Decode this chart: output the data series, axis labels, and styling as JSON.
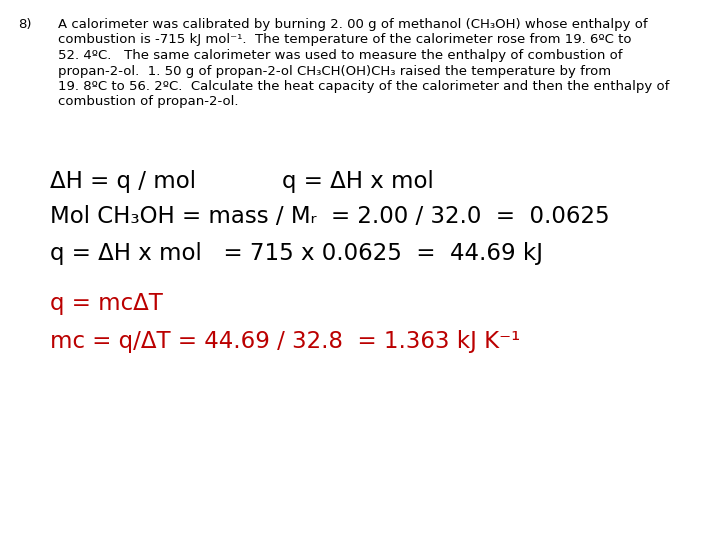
{
  "background_color": "#ffffff",
  "problem_number": "8)",
  "problem_text_lines": [
    "A calorimeter was calibrated by burning 2. 00 g of methanol (CH₃OH) whose enthalpy of",
    "combustion is -715 kJ mol⁻¹.  The temperature of the calorimeter rose from 19. 6ºC to",
    "52. 4ºC.   The same calorimeter was used to measure the enthalpy of combustion of",
    "propan-2-ol.  1. 50 g of propan-2-ol CH₃CH(OH)CH₃ raised the temperature by from",
    "19. 8ºC to 56. 2ºC.  Calculate the heat capacity of the calorimeter and then the enthalpy of",
    "combustion of propan-2-ol."
  ],
  "line1_left": "ΔH = q / mol",
  "line1_right": "q = ΔH x mol",
  "line2": "Mol CH₃OH = mass / Mᵣ  = 2.00 / 32.0  =  0.0625",
  "line3": "q = ΔH x mol   = 715 x 0.0625  =  44.69 kJ",
  "line4": "q = mcΔT",
  "line5": "mc = q/ΔT = 44.69 / 32.8  = 1.363 kJ K⁻¹",
  "black_color": "#000000",
  "red_color": "#bb0000",
  "text_font_size_small": 9.5,
  "text_font_size_large": 16.5,
  "fig_width": 7.2,
  "fig_height": 5.4,
  "dpi": 100
}
